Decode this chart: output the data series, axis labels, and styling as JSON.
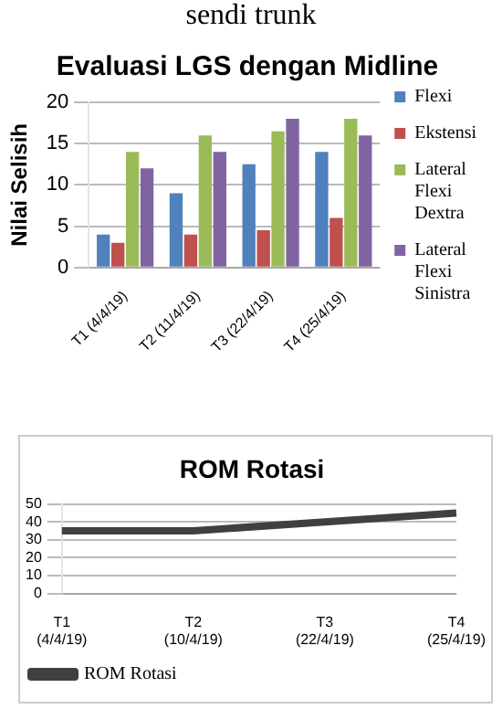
{
  "chart_data": [
    {
      "type": "bar",
      "title": "Evaluasi LGS dengan Midline",
      "ylabel": "Nilai Selisih",
      "annotations": [
        "sendi trunk"
      ],
      "categories": [
        "T1 (4/4/19)",
        "T2 (11/4/19)",
        "T3 (22/4/19)",
        "T4 (25/4/19)"
      ],
      "series": [
        {
          "name": "Flexi",
          "color": "#4f81bd",
          "values": [
            4,
            9,
            12.5,
            14
          ]
        },
        {
          "name": "Ekstensi",
          "color": "#c0504d",
          "values": [
            3,
            4,
            4.5,
            6
          ]
        },
        {
          "name": "Lateral Flexi Dextra",
          "color": "#9bbb59",
          "values": [
            14,
            16,
            16.5,
            18
          ]
        },
        {
          "name": "Lateral Flexi Sinistra",
          "color": "#8064a2",
          "values": [
            12,
            14,
            18,
            16
          ]
        }
      ],
      "ylim": [
        0,
        20
      ],
      "yticks": [
        0,
        5,
        10,
        15,
        20
      ],
      "grid": "y",
      "legend": "right"
    },
    {
      "type": "line",
      "title": "ROM Rotasi",
      "categories": [
        "T1 (4/4/19)",
        "T2 (10/4/19)",
        "T3 (22/4/19)",
        "T4 (25/4/19)"
      ],
      "series": [
        {
          "name": "ROM Rotasi",
          "color": "#404040",
          "values": [
            35,
            35,
            40,
            45
          ]
        }
      ],
      "ylim": [
        0,
        50
      ],
      "yticks": [
        0,
        10,
        20,
        30,
        40,
        50
      ],
      "grid": "y",
      "legend": "bottom",
      "marker": "none"
    }
  ]
}
